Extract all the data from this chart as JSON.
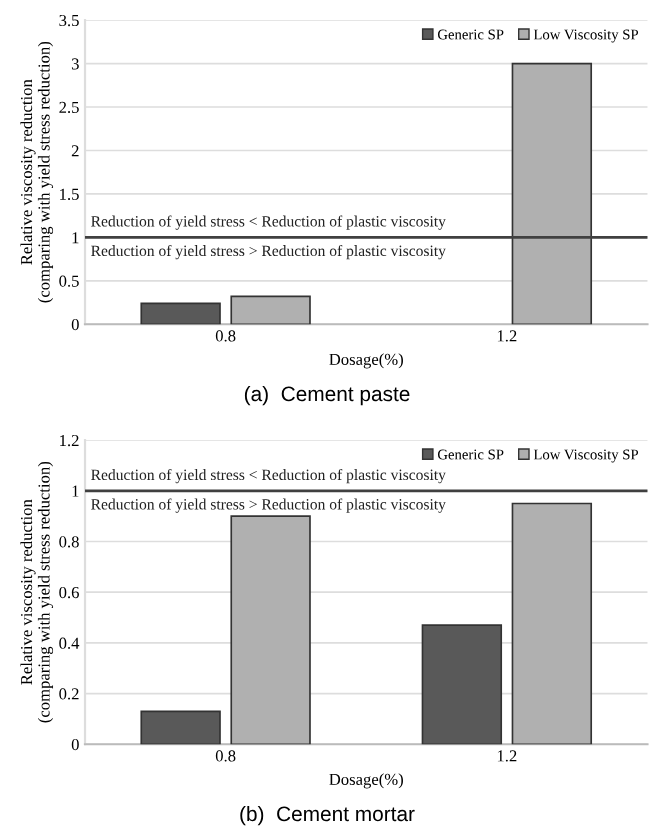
{
  "chart_data": [
    {
      "type": "bar",
      "title": "(a)  Cement paste",
      "xlabel": "Dosage(%)",
      "ylabel": "Relative viscosity reduction\n(comparing with yield stress reduction)",
      "categories": [
        "0.8",
        "1.2"
      ],
      "series": [
        {
          "name": "Generic SP",
          "color": "#595959",
          "values": [
            0.24,
            null
          ]
        },
        {
          "name": "Low Viscosity SP",
          "color": "#b0b0b0",
          "values": [
            0.32,
            3.0
          ]
        }
      ],
      "ylim": [
        0,
        3.5
      ],
      "yticks": [
        0,
        0.5,
        1,
        1.5,
        2,
        2.5,
        3,
        3.5
      ],
      "grid": "y",
      "legend": "top right",
      "ref_lines": [
        {
          "axis": "y",
          "value": 1,
          "color": "#404040"
        }
      ],
      "annotations": [
        "Reduction of yield stress < Reduction of plastic viscosity",
        "Reduction of yield stress > Reduction of plastic viscosity"
      ]
    },
    {
      "type": "bar",
      "title": "(b)  Cement mortar",
      "xlabel": "Dosage(%)",
      "ylabel": "Relative viscosity reduction\n(comparing with yield stress reduction)",
      "categories": [
        "0.8",
        "1.2"
      ],
      "series": [
        {
          "name": "Generic SP",
          "color": "#595959",
          "values": [
            0.13,
            0.47
          ]
        },
        {
          "name": "Low Viscosity SP",
          "color": "#b0b0b0",
          "values": [
            0.9,
            0.95
          ]
        }
      ],
      "ylim": [
        0,
        1.2
      ],
      "yticks": [
        0,
        0.2,
        0.4,
        0.6,
        0.8,
        1,
        1.2
      ],
      "grid": "y",
      "legend": "top right",
      "ref_lines": [
        {
          "axis": "y",
          "value": 1,
          "color": "#404040"
        }
      ],
      "annotations": [
        "Reduction of yield stress < Reduction of plastic viscosity",
        "Reduction of yield stress > Reduction of plastic viscosity"
      ]
    }
  ]
}
